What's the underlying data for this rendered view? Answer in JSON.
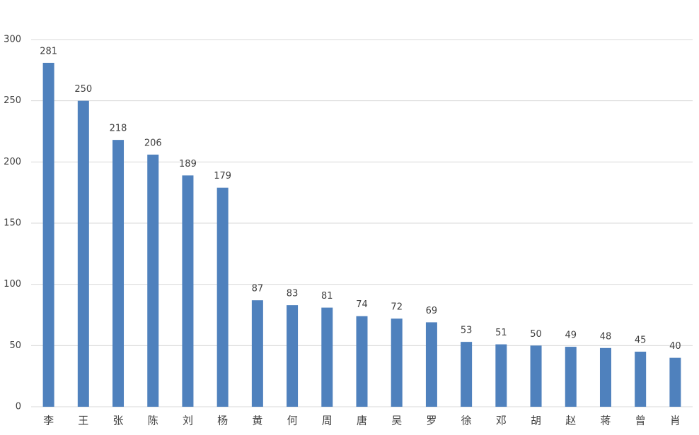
{
  "chart_data": {
    "type": "bar",
    "categories": [
      "李",
      "王",
      "张",
      "陈",
      "刘",
      "杨",
      "黄",
      "何",
      "周",
      "唐",
      "吴",
      "罗",
      "徐",
      "邓",
      "胡",
      "赵",
      "蒋",
      "曾",
      "肖"
    ],
    "values": [
      281,
      250,
      218,
      206,
      189,
      179,
      87,
      83,
      81,
      74,
      72,
      69,
      53,
      51,
      50,
      49,
      48,
      45,
      40
    ],
    "color": "#4f81bd",
    "ylim": [
      0,
      300
    ],
    "yticks": [
      0,
      50,
      100,
      150,
      200,
      250,
      300
    ],
    "grid": true
  }
}
